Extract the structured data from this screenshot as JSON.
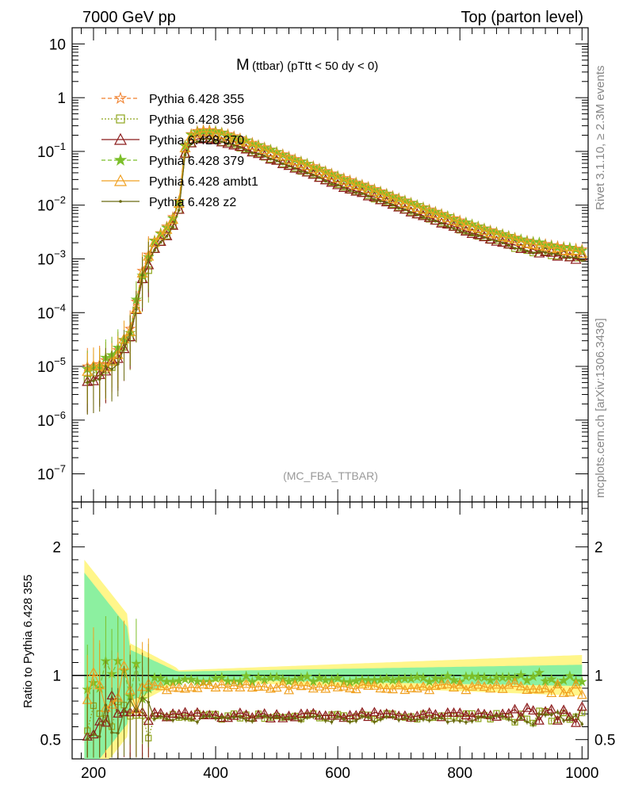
{
  "header": {
    "left": "7000 GeV pp",
    "right": "Top (parton level)"
  },
  "side_labels": {
    "rivet": "Rivet 3.1.10, ≥ 2.3M events",
    "mcplots": "mcplots.cern.ch [arXiv:1306.3436]"
  },
  "chart_data": {
    "type": "line",
    "title_main": "M",
    "title_sub": "(ttbar) (pTtt < 50 dy < 0)",
    "watermark": "(MC_FBA_TTBAR)",
    "xlim": [
      165,
      1010
    ],
    "ylog": true,
    "ylim": [
      3e-08,
      20
    ],
    "ratio_label": "Ratio to Pythia 6.428 355",
    "ratio_ylim": [
      0.35,
      2.35
    ],
    "x_ticks": [
      200,
      400,
      600,
      800,
      1000
    ],
    "y_ticks": [
      "10",
      "1",
      "10^-1",
      "10^-2",
      "10^-3",
      "10^-4",
      "10^-5",
      "10^-6",
      "10^-7"
    ],
    "ratio_ticks": [
      "0.5",
      "1",
      "2"
    ],
    "reference": "Pythia 6.428 355",
    "series": [
      {
        "name": "Pythia 6.428 355",
        "color": "#f07f2a",
        "dash": "5,3",
        "marker": "star-open",
        "scale": 1.0
      },
      {
        "name": "Pythia 6.428 356",
        "color": "#8ea51c",
        "dash": "2,2",
        "marker": "square-open",
        "scale": 0.68
      },
      {
        "name": "Pythia 6.428 370",
        "color": "#8b1a1a",
        "dash": "",
        "marker": "triangle-open",
        "scale": 0.69
      },
      {
        "name": "Pythia 6.428 379",
        "color": "#7cbf2a",
        "dash": "5,3",
        "marker": "star-filled",
        "scale": 0.97
      },
      {
        "name": "Pythia 6.428 ambt1",
        "color": "#f0a020",
        "dash": "",
        "marker": "triangle-open",
        "scale": 0.91
      },
      {
        "name": "Pythia 6.428 z2",
        "color": "#6b6b10",
        "dash": "",
        "marker": "dot",
        "scale": 0.66
      }
    ],
    "reference_curve": {
      "x": [
        190,
        200,
        210,
        220,
        230,
        240,
        250,
        260,
        270,
        280,
        290,
        300,
        310,
        320,
        330,
        340,
        345,
        350,
        360,
        370,
        380,
        390,
        400,
        420,
        450,
        500,
        550,
        600,
        650,
        700,
        750,
        800,
        850,
        900,
        950,
        1000
      ],
      "y": [
        1e-05,
        1e-05,
        1.1e-05,
        1.3e-05,
        1.6e-05,
        2e-05,
        3e-05,
        5e-05,
        0.00016,
        0.0006,
        0.0012,
        0.0022,
        0.003,
        0.004,
        0.006,
        0.012,
        0.03,
        0.13,
        0.21,
        0.24,
        0.25,
        0.25,
        0.24,
        0.21,
        0.16,
        0.098,
        0.059,
        0.035,
        0.022,
        0.0135,
        0.0083,
        0.0052,
        0.0034,
        0.0023,
        0.0018,
        0.0015
      ]
    }
  }
}
